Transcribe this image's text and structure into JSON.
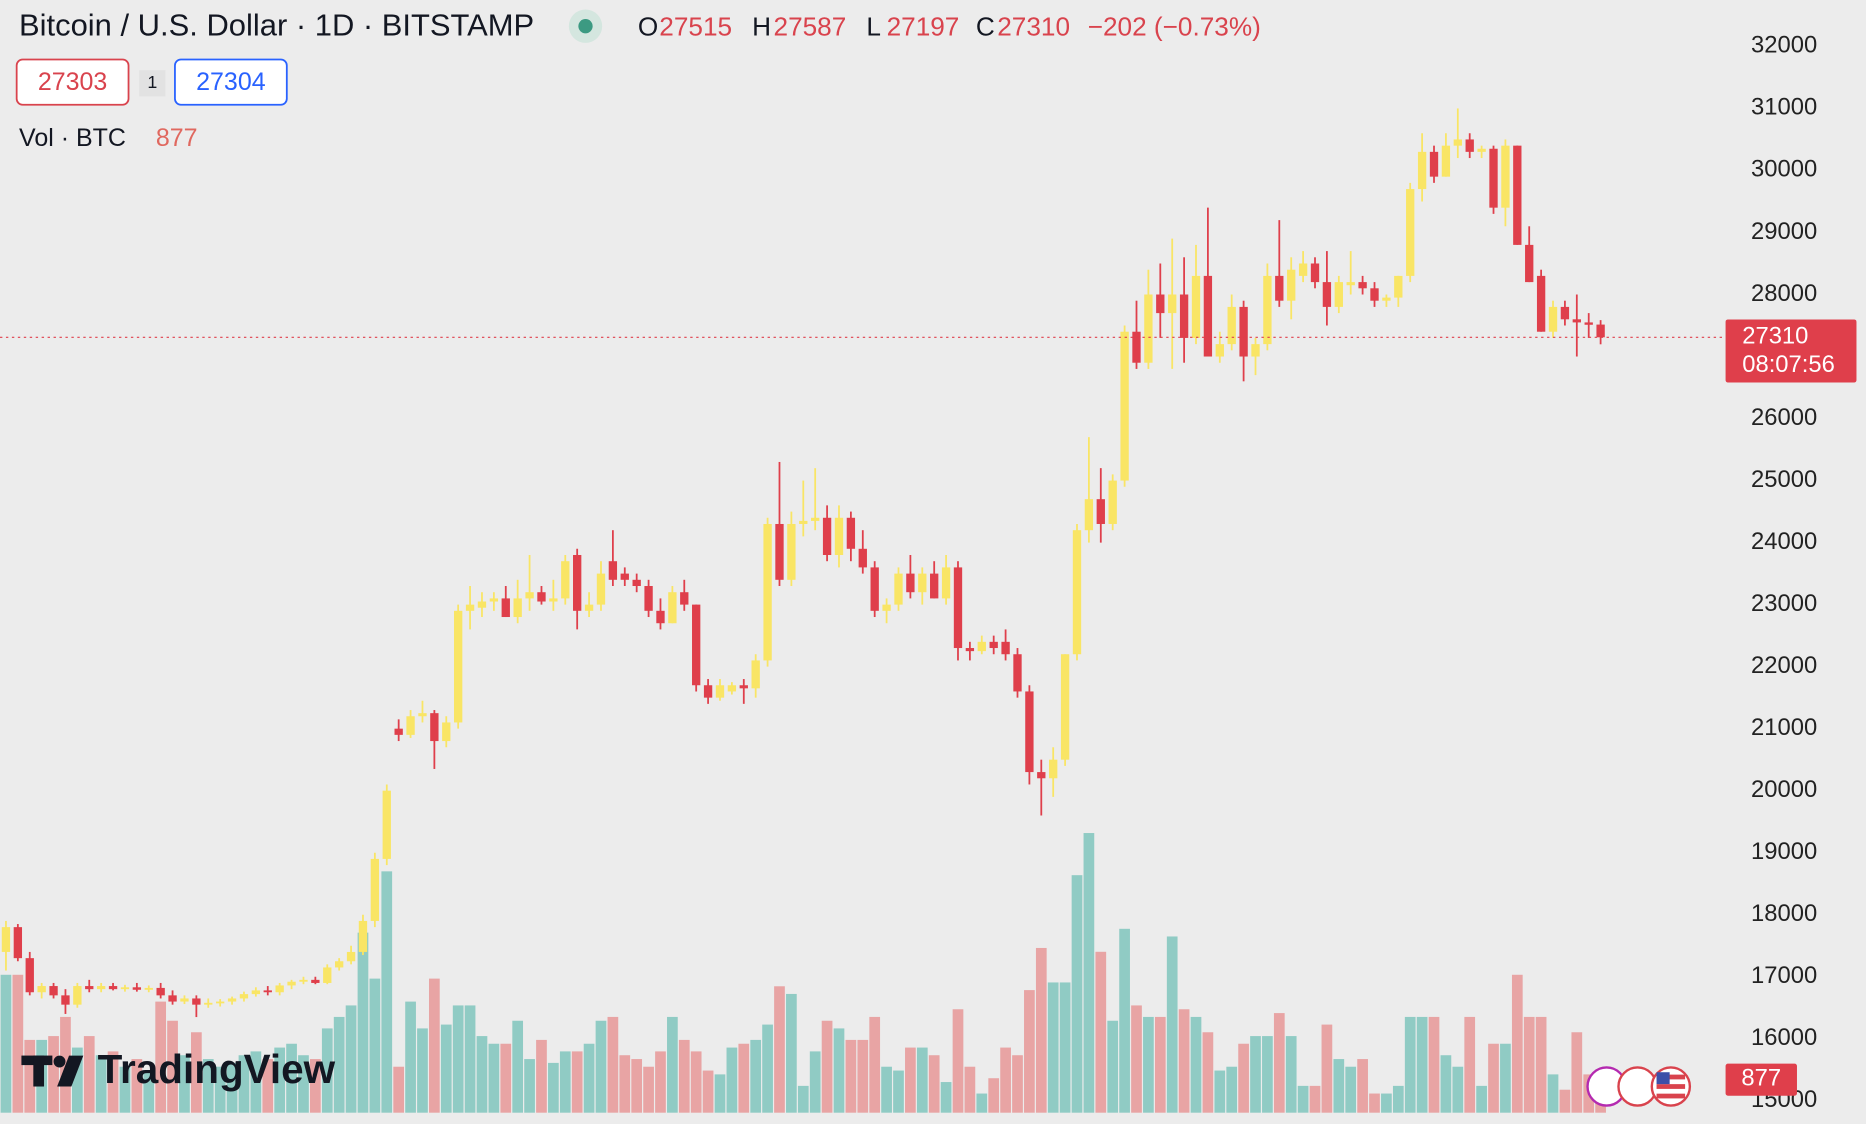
{
  "chart_data": {
    "type": "candlestick",
    "title": "Bitcoin / U.S. Dollar · 1D · BITSTAMP",
    "ohlc_labels": [
      "O",
      "H",
      "L",
      "C"
    ],
    "change": "−202 (−0.73%)",
    "volume_label": "Vol · BTC",
    "countdown": "08:07:56",
    "up_color": "#f9e565",
    "down_color": "#df3f4b",
    "volume_up_color": "#90cbc4",
    "volume_down_color": "#e8a4a4",
    "ylim": [
      15000,
      32000
    ],
    "yticks": [
      15000,
      16000,
      17000,
      18000,
      19000,
      20000,
      21000,
      22000,
      23000,
      24000,
      25000,
      26000,
      28000,
      29000,
      30000,
      31000,
      32000
    ],
    "candles": [
      [
        17400,
        17900,
        17100,
        17800,
        3600
      ],
      [
        17800,
        17850,
        17250,
        17300,
        3600
      ],
      [
        17300,
        17400,
        16700,
        16750,
        1900
      ],
      [
        16750,
        16900,
        16650,
        16850,
        1900
      ],
      [
        16850,
        16900,
        16650,
        16700,
        2000
      ],
      [
        16700,
        16800,
        16400,
        16550,
        2500
      ],
      [
        16550,
        16900,
        16500,
        16850,
        1700
      ],
      [
        16850,
        16950,
        16750,
        16800,
        2000
      ],
      [
        16800,
        16900,
        16750,
        16850,
        1500
      ],
      [
        16850,
        16900,
        16780,
        16800,
        1600
      ],
      [
        16800,
        16870,
        16760,
        16830,
        1200
      ],
      [
        16830,
        16900,
        16760,
        16790,
        1400
      ],
      [
        16790,
        16860,
        16750,
        16820,
        1100
      ],
      [
        16820,
        16900,
        16650,
        16700,
        2900
      ],
      [
        16700,
        16780,
        16550,
        16600,
        2400
      ],
      [
        16600,
        16700,
        16560,
        16650,
        1500
      ],
      [
        16650,
        16700,
        16350,
        16550,
        2100
      ],
      [
        16550,
        16650,
        16500,
        16580,
        1400
      ],
      [
        16580,
        16640,
        16520,
        16600,
        1200
      ],
      [
        16600,
        16680,
        16550,
        16650,
        1300
      ],
      [
        16650,
        16760,
        16600,
        16720,
        1500
      ],
      [
        16720,
        16830,
        16680,
        16780,
        1600
      ],
      [
        16780,
        16850,
        16700,
        16750,
        1400
      ],
      [
        16750,
        16900,
        16700,
        16860,
        1700
      ],
      [
        16860,
        16950,
        16800,
        16920,
        1800
      ],
      [
        16920,
        17000,
        16880,
        16950,
        1500
      ],
      [
        16950,
        17000,
        16880,
        16900,
        1400
      ],
      [
        16900,
        17200,
        16880,
        17150,
        2200
      ],
      [
        17150,
        17300,
        17100,
        17250,
        2500
      ],
      [
        17250,
        17500,
        17200,
        17400,
        2800
      ],
      [
        17400,
        18000,
        17350,
        17900,
        4700
      ],
      [
        17900,
        19000,
        17800,
        18900,
        3500
      ],
      [
        18900,
        20100,
        18800,
        20000,
        6300
      ],
      [
        21000,
        21150,
        20800,
        20900,
        1200
      ],
      [
        20900,
        21300,
        20850,
        21200,
        2900
      ],
      [
        21200,
        21450,
        21100,
        21250,
        2200
      ],
      [
        21250,
        21300,
        20350,
        20800,
        3500
      ],
      [
        20800,
        21200,
        20700,
        21100,
        2300
      ],
      [
        21100,
        23000,
        21000,
        22900,
        2800
      ],
      [
        22900,
        23300,
        22600,
        23000,
        2800
      ],
      [
        22950,
        23200,
        22800,
        23050,
        2000
      ],
      [
        23050,
        23200,
        22900,
        23100,
        1800
      ],
      [
        23100,
        23300,
        22800,
        22800,
        1800
      ],
      [
        22800,
        23400,
        22700,
        23100,
        2400
      ],
      [
        23100,
        23800,
        22900,
        23200,
        1400
      ],
      [
        23200,
        23300,
        23000,
        23050,
        1900
      ],
      [
        23050,
        23400,
        22900,
        23100,
        1300
      ],
      [
        23100,
        23800,
        23000,
        23700,
        1600
      ],
      [
        23800,
        23900,
        22600,
        22900,
        1600
      ],
      [
        22900,
        23200,
        22800,
        23000,
        1800
      ],
      [
        23000,
        23700,
        22900,
        23500,
        2400
      ],
      [
        23700,
        24200,
        23300,
        23400,
        2500
      ],
      [
        23500,
        23600,
        23300,
        23400,
        1500
      ],
      [
        23400,
        23500,
        23200,
        23300,
        1400
      ],
      [
        23300,
        23400,
        22800,
        22900,
        1200
      ],
      [
        22900,
        23100,
        22600,
        22700,
        1600
      ],
      [
        22700,
        23300,
        22700,
        23200,
        2500
      ],
      [
        23200,
        23400,
        22900,
        23000,
        1900
      ],
      [
        23000,
        23000,
        21600,
        21700,
        1600
      ],
      [
        21700,
        21800,
        21400,
        21500,
        1100
      ],
      [
        21500,
        21800,
        21450,
        21700,
        1000
      ],
      [
        21600,
        21750,
        21550,
        21700,
        1700
      ],
      [
        21700,
        21800,
        21400,
        21650,
        1800
      ],
      [
        21650,
        22200,
        21500,
        22100,
        1900
      ],
      [
        22100,
        24400,
        22000,
        24300,
        2300
      ],
      [
        24300,
        25300,
        23300,
        23400,
        3300
      ],
      [
        23400,
        24500,
        23300,
        24300,
        3100
      ],
      [
        24300,
        25000,
        24100,
        24350,
        700
      ],
      [
        24350,
        25200,
        24200,
        24400,
        1600
      ],
      [
        24400,
        24600,
        23700,
        23800,
        2400
      ],
      [
        23800,
        24600,
        23600,
        24400,
        2200
      ],
      [
        24400,
        24500,
        23700,
        23900,
        1900
      ],
      [
        23900,
        24200,
        23500,
        23600,
        1900
      ],
      [
        23600,
        23700,
        22800,
        22900,
        2500
      ],
      [
        22900,
        23100,
        22700,
        23000,
        1200
      ],
      [
        23000,
        23600,
        22900,
        23500,
        1100
      ],
      [
        23500,
        23800,
        23100,
        23200,
        1700
      ],
      [
        23200,
        23600,
        23000,
        23500,
        1700
      ],
      [
        23500,
        23700,
        23100,
        23100,
        1500
      ],
      [
        23100,
        23800,
        23000,
        23600,
        800
      ],
      [
        23600,
        23700,
        22100,
        22300,
        2700
      ],
      [
        22300,
        22400,
        22100,
        22250,
        1200
      ],
      [
        22250,
        22500,
        22200,
        22400,
        500
      ],
      [
        22400,
        22500,
        22200,
        22300,
        900
      ],
      [
        22400,
        22600,
        22100,
        22200,
        1700
      ],
      [
        22200,
        22300,
        21500,
        21600,
        1500
      ],
      [
        21600,
        21700,
        20100,
        20300,
        3200
      ],
      [
        20300,
        20500,
        19600,
        20200,
        4300
      ],
      [
        20200,
        20700,
        19900,
        20500,
        3400
      ],
      [
        20500,
        22200,
        20400,
        22200,
        3400
      ],
      [
        22200,
        24300,
        22100,
        24200,
        6200
      ],
      [
        24200,
        25700,
        24000,
        24700,
        7300
      ],
      [
        24700,
        25200,
        24000,
        24300,
        4200
      ],
      [
        24300,
        25100,
        24200,
        25000,
        2400
      ],
      [
        25000,
        27500,
        24900,
        27400,
        4800
      ],
      [
        27400,
        27900,
        26800,
        26900,
        2800
      ],
      [
        26900,
        28400,
        26800,
        28000,
        2500
      ],
      [
        28000,
        28500,
        27300,
        27700,
        2500
      ],
      [
        27700,
        28900,
        26800,
        28000,
        4600
      ],
      [
        28000,
        28600,
        26900,
        27300,
        2700
      ],
      [
        27300,
        28800,
        27200,
        28300,
        2500
      ],
      [
        28300,
        29400,
        27000,
        27000,
        2100
      ],
      [
        27000,
        27400,
        26900,
        27200,
        1100
      ],
      [
        27200,
        28000,
        27100,
        27800,
        1200
      ],
      [
        27800,
        27900,
        26600,
        27000,
        1800
      ],
      [
        27000,
        27300,
        26700,
        27200,
        2000
      ],
      [
        27200,
        28500,
        27100,
        28300,
        2000
      ],
      [
        28300,
        29200,
        27800,
        27900,
        2600
      ],
      [
        27900,
        28600,
        27600,
        28400,
        2000
      ],
      [
        28300,
        28700,
        28200,
        28500,
        700
      ],
      [
        28500,
        28600,
        28100,
        28200,
        700
      ],
      [
        28200,
        28700,
        27500,
        27800,
        2300
      ],
      [
        27800,
        28300,
        27700,
        28200,
        1400
      ],
      [
        28150,
        28700,
        28000,
        28200,
        1200
      ],
      [
        28200,
        28300,
        28000,
        28100,
        1400
      ],
      [
        28100,
        28200,
        27800,
        27900,
        500
      ],
      [
        27900,
        28000,
        27800,
        27950,
        500
      ],
      [
        27950,
        28300,
        27800,
        28300,
        700
      ],
      [
        28300,
        29800,
        28200,
        29700,
        2500
      ],
      [
        29700,
        30600,
        29500,
        30300,
        2500
      ],
      [
        30300,
        30400,
        29800,
        29900,
        2500
      ],
      [
        29900,
        30600,
        29900,
        30400,
        1500
      ],
      [
        30400,
        31000,
        30200,
        30500,
        1200
      ],
      [
        30500,
        30600,
        30200,
        30300,
        2500
      ],
      [
        30300,
        30400,
        30200,
        30350,
        700
      ],
      [
        30350,
        30400,
        29300,
        29400,
        1800
      ],
      [
        29400,
        30500,
        29100,
        30400,
        1800
      ],
      [
        30400,
        30400,
        28800,
        28800,
        3600
      ],
      [
        28800,
        29100,
        28200,
        28200,
        2500
      ],
      [
        28300,
        28400,
        27400,
        27400,
        2500
      ],
      [
        27400,
        27900,
        27300,
        27800,
        1000
      ],
      [
        27800,
        27900,
        27500,
        27600,
        600
      ],
      [
        27600,
        28000,
        27000,
        27550,
        2100
      ],
      [
        27550,
        27700,
        27300,
        27512,
        1000
      ],
      [
        27515,
        27587,
        27197,
        27310,
        877
      ]
    ]
  },
  "quote": {
    "bid": 27303,
    "spread": 1,
    "ask": 27304
  },
  "branding": {
    "logo": "TradingView"
  }
}
